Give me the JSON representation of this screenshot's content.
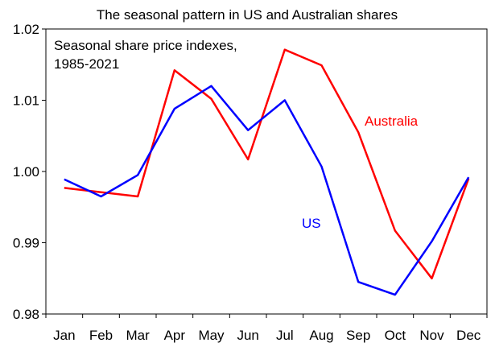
{
  "chart_data": {
    "type": "line",
    "title": "The seasonal pattern in US and Australian shares",
    "note_lines": [
      "Seasonal share price indexes,",
      "1985-2021"
    ],
    "categories": [
      "Jan",
      "Feb",
      "Mar",
      "Apr",
      "May",
      "Jun",
      "Jul",
      "Aug",
      "Sep",
      "Oct",
      "Nov",
      "Dec"
    ],
    "series": [
      {
        "name": "US",
        "color": "#0000ff",
        "values": [
          0.9989,
          0.9965,
          0.9995,
          1.0088,
          1.012,
          1.0058,
          1.01,
          1.0007,
          0.9845,
          0.9827,
          0.9902,
          0.9992
        ]
      },
      {
        "name": "Australia",
        "color": "#ff0000",
        "values": [
          0.9977,
          0.9971,
          0.9965,
          1.0142,
          1.0102,
          1.0017,
          1.0171,
          1.0149,
          1.0055,
          0.9917,
          0.985,
          0.999
        ]
      }
    ],
    "ylim": [
      0.98,
      1.02
    ],
    "yticks": [
      "0.98",
      "0.99",
      "1.00",
      "1.01",
      "1.02"
    ],
    "xlabel": "",
    "ylabel": "",
    "grid": false,
    "legend": "inline labels"
  }
}
